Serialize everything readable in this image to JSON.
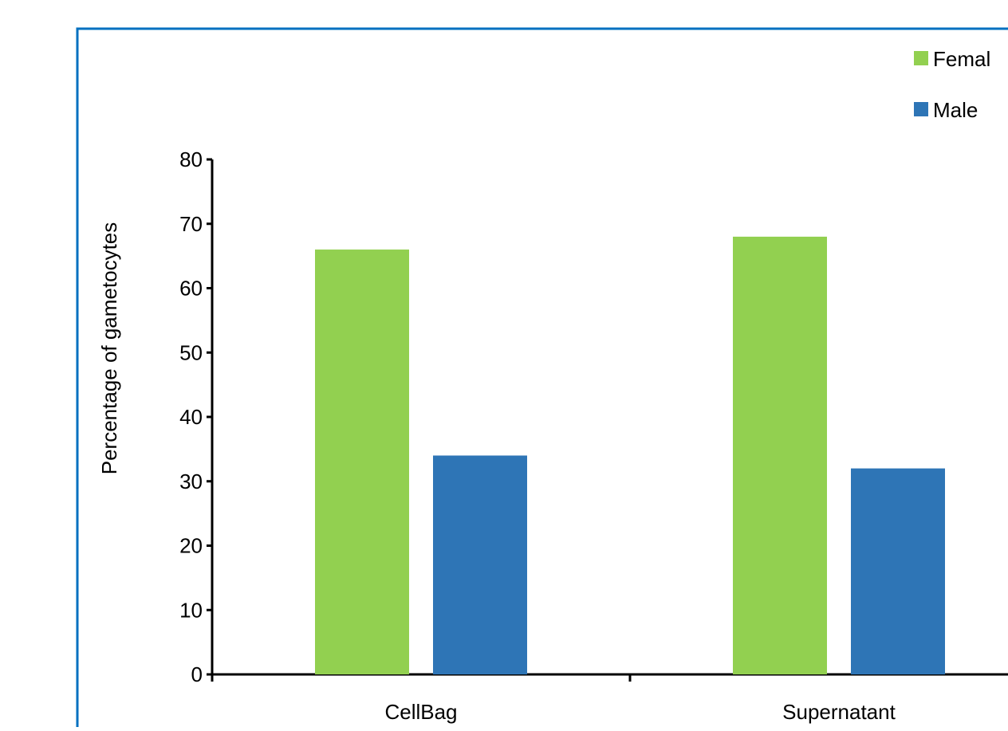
{
  "chart_data": {
    "type": "bar",
    "title": "",
    "xlabel": "",
    "ylabel": "Percentage of gametocytes",
    "categories": [
      "CellBag",
      "Supernatant"
    ],
    "series": [
      {
        "name": "Femal",
        "values": [
          66,
          68
        ],
        "color": "#92d050"
      },
      {
        "name": "Male",
        "values": [
          34,
          32
        ],
        "color": "#2e75b6"
      }
    ],
    "ylim": [
      0,
      80
    ],
    "yticks": [
      0,
      10,
      20,
      30,
      40,
      50,
      60,
      70,
      80
    ],
    "grid": false,
    "legend_position": "top-right",
    "frame_color": "#0070c0"
  }
}
